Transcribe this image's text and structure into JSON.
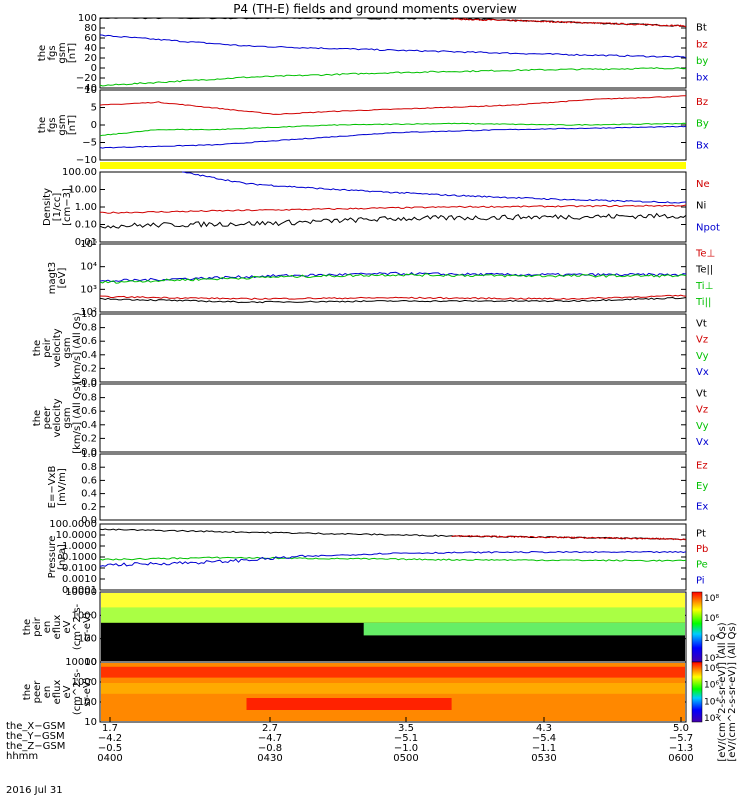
{
  "title": "P4 (TH-E) fields and ground moments overview",
  "date": "2016 Jul 31",
  "colors": {
    "black": "#000000",
    "red": "#d00000",
    "green": "#00c000",
    "blue": "#0000d0",
    "yellow": "#ffff00"
  },
  "chart_data": [
    {
      "id": "fgs-gsm-mag",
      "type": "line",
      "ylabel": [
        "the",
        "fgs",
        "gsm",
        "[nT]"
      ],
      "yticks": [
        "100",
        "80",
        "60",
        "40",
        "20",
        "0",
        "−20",
        "−40"
      ],
      "ylim": [
        -45,
        105
      ],
      "legend": [
        {
          "name": "Bt",
          "color": "#000000"
        },
        {
          "name": "bz",
          "color": "#d00000"
        },
        {
          "name": "by",
          "color": "#00c000"
        },
        {
          "name": "bx",
          "color": "#0000d0"
        }
      ],
      "series": [
        {
          "name": "bt",
          "color": "#000000",
          "points": [
            [
              0,
              105
            ],
            [
              0.6,
              104
            ],
            [
              1,
              88
            ]
          ]
        },
        {
          "name": "bz",
          "color": "#d00000",
          "points": [
            [
              0.6,
              103
            ],
            [
              0.8,
              96
            ],
            [
              1,
              88
            ]
          ]
        },
        {
          "name": "by",
          "color": "#0000d0",
          "points": [
            [
              0,
              68
            ],
            [
              0.25,
              45
            ],
            [
              0.5,
              36
            ],
            [
              0.75,
              28
            ],
            [
              1,
              21
            ]
          ]
        },
        {
          "name": "bx",
          "color": "#00c000",
          "points": [
            [
              0,
              -40
            ],
            [
              0.25,
              -22
            ],
            [
              0.5,
              -12
            ],
            [
              0.75,
              -6
            ],
            [
              1,
              -2
            ]
          ]
        }
      ]
    },
    {
      "id": "fgs-gsm",
      "type": "line",
      "ylabel": [
        "the",
        "fgs",
        "gsm",
        "[nT]"
      ],
      "yticks": [
        "10",
        "5",
        "0",
        "−5",
        "−10"
      ],
      "ylim": [
        -13,
        10
      ],
      "legend": [
        {
          "name": "Bz",
          "color": "#d00000"
        },
        {
          "name": "By",
          "color": "#00c000"
        },
        {
          "name": "Bx",
          "color": "#0000d0"
        }
      ],
      "series": [
        {
          "name": "Bz",
          "color": "#d00000",
          "points": [
            [
              0,
              5
            ],
            [
              0.1,
              6
            ],
            [
              0.2,
              4
            ],
            [
              0.3,
              2
            ],
            [
              0.4,
              3
            ],
            [
              0.55,
              4
            ],
            [
              0.7,
              5
            ],
            [
              0.85,
              7
            ],
            [
              1,
              8
            ]
          ]
        },
        {
          "name": "By",
          "color": "#00c000",
          "points": [
            [
              0,
              -5
            ],
            [
              0.1,
              -3
            ],
            [
              0.2,
              -3
            ],
            [
              0.4,
              -1.5
            ],
            [
              0.6,
              -1
            ],
            [
              0.8,
              -1.5
            ],
            [
              1,
              -1
            ]
          ]
        },
        {
          "name": "Bx",
          "color": "#0000d0",
          "points": [
            [
              0,
              -9
            ],
            [
              0.2,
              -8
            ],
            [
              0.35,
              -6
            ],
            [
              0.5,
              -4
            ],
            [
              0.7,
              -3
            ],
            [
              0.85,
              -2.5
            ],
            [
              1,
              -2
            ]
          ]
        }
      ]
    },
    {
      "id": "density",
      "type": "line",
      "ylabel": [
        "Density",
        "[1/cc]",
        "[cm−3]"
      ],
      "yticks": [
        "100.00",
        "10.00",
        "1.00",
        "0.10",
        "0.01"
      ],
      "log": true,
      "ylim": [
        -2.3,
        2.5
      ],
      "legend": [
        {
          "name": "Ne",
          "color": "#d00000"
        },
        {
          "name": "Ni",
          "color": "#000000"
        },
        {
          "name": "Npot",
          "color": "#0000d0"
        }
      ],
      "series": [
        {
          "name": "Ne",
          "color": "#d00000",
          "points": [
            [
              0,
              -0.3
            ],
            [
              0.3,
              -0.1
            ],
            [
              0.6,
              0.1
            ],
            [
              1,
              0.2
            ]
          ]
        },
        {
          "name": "Ni",
          "color": "#0000d0",
          "points": [
            [
              0.14,
              2.5
            ],
            [
              0.25,
              1.7
            ],
            [
              0.4,
              1.3
            ],
            [
              0.6,
              0.9
            ],
            [
              0.8,
              0.6
            ],
            [
              1,
              0.4
            ]
          ]
        },
        {
          "name": "Npot",
          "color": "#000000",
          "points": [
            [
              0,
              -1.2
            ],
            [
              0.3,
              -1.0
            ],
            [
              0.5,
              -0.7
            ],
            [
              0.7,
              -0.6
            ],
            [
              1,
              -0.5
            ]
          ]
        }
      ]
    },
    {
      "id": "magt3",
      "type": "line",
      "ylabel": [
        "magt3",
        "[eV]"
      ],
      "yticks": [
        "10⁵",
        "10⁴",
        "10³",
        "10²"
      ],
      "log": true,
      "ylim": [
        1.9,
        5
      ],
      "legend": [
        {
          "name": "Te⊥",
          "color": "#d00000"
        },
        {
          "name": "Te||",
          "color": "#000000"
        },
        {
          "name": "Ti⊥",
          "color": "#00c000"
        },
        {
          "name": "Ti||",
          "color": "#00c000"
        }
      ],
      "series": [
        {
          "name": "Ti",
          "color": "#0000d0",
          "points": [
            [
              0,
              3.3
            ],
            [
              0.3,
              3.55
            ],
            [
              0.5,
              3.65
            ],
            [
              0.7,
              3.6
            ],
            [
              1,
              3.6
            ]
          ]
        },
        {
          "name": "Tip",
          "color": "#00c000",
          "points": [
            [
              0,
              3.25
            ],
            [
              0.3,
              3.5
            ],
            [
              0.5,
              3.6
            ],
            [
              0.7,
              3.55
            ],
            [
              1,
              3.55
            ]
          ]
        },
        {
          "name": "Te",
          "color": "#d00000",
          "points": [
            [
              0,
              2.6
            ],
            [
              0.25,
              2.5
            ],
            [
              0.5,
              2.55
            ],
            [
              0.8,
              2.5
            ],
            [
              1,
              2.65
            ]
          ]
        },
        {
          "name": "Tep",
          "color": "#000000",
          "points": [
            [
              0,
              2.5
            ],
            [
              0.25,
              2.35
            ],
            [
              0.5,
              2.4
            ],
            [
              0.8,
              2.4
            ],
            [
              1,
              2.55
            ]
          ]
        }
      ]
    },
    {
      "id": "peir-velocity",
      "type": "line",
      "ylabel": [
        "the",
        "peir",
        "velocity",
        "gsm",
        "[km/s] (All Qs)"
      ],
      "yticks": [
        "1.0",
        "0.8",
        "0.6",
        "0.4",
        "0.2",
        "0.0"
      ],
      "ylim": [
        0,
        1
      ],
      "legend": [
        {
          "name": "Vt",
          "color": "#000000"
        },
        {
          "name": "Vz",
          "color": "#d00000"
        },
        {
          "name": "Vy",
          "color": "#00c000"
        },
        {
          "name": "Vx",
          "color": "#0000d0"
        }
      ],
      "series": []
    },
    {
      "id": "peer-velocity",
      "type": "line",
      "ylabel": [
        "the",
        "peer",
        "velocity",
        "gsm",
        "[km/s] (All Qs)"
      ],
      "yticks": [
        "1.0",
        "0.8",
        "0.6",
        "0.4",
        "0.2",
        "0.0"
      ],
      "ylim": [
        0,
        1
      ],
      "legend": [
        {
          "name": "Vt",
          "color": "#000000"
        },
        {
          "name": "Vz",
          "color": "#d00000"
        },
        {
          "name": "Vy",
          "color": "#00c000"
        },
        {
          "name": "Vx",
          "color": "#0000d0"
        }
      ],
      "series": []
    },
    {
      "id": "e-field",
      "type": "line",
      "ylabel": [
        "E=−VxB",
        "[mV/m]"
      ],
      "yticks": [
        "1.0",
        "0.8",
        "0.6",
        "0.4",
        "0.2",
        "0.0"
      ],
      "ylim": [
        0,
        1
      ],
      "legend": [
        {
          "name": "Ez",
          "color": "#d00000"
        },
        {
          "name": "Ey",
          "color": "#00c000"
        },
        {
          "name": "Ex",
          "color": "#0000d0"
        }
      ],
      "series": []
    },
    {
      "id": "pressure",
      "type": "line",
      "ylabel": [
        "Pressure",
        "[nPa]"
      ],
      "yticks": [
        "100.0000",
        "10.0000",
        "1.0000",
        "0.1000",
        "0.0100",
        "0.0010",
        "0.0001"
      ],
      "log": true,
      "ylim": [
        -4,
        2.1
      ],
      "legend": [
        {
          "name": "Pt",
          "color": "#000000"
        },
        {
          "name": "Pb",
          "color": "#d00000"
        },
        {
          "name": "Pe",
          "color": "#00c000"
        },
        {
          "name": "Pi",
          "color": "#0000d0"
        }
      ],
      "series": [
        {
          "name": "Pt",
          "color": "#000000",
          "points": [
            [
              0,
              1.6
            ],
            [
              0.3,
              1.3
            ],
            [
              0.6,
              1.0
            ],
            [
              0.8,
              0.85
            ],
            [
              1,
              0.7
            ]
          ]
        },
        {
          "name": "Pb",
          "color": "#d00000",
          "points": [
            [
              0.6,
              1.0
            ],
            [
              0.8,
              0.85
            ],
            [
              1,
              0.7
            ]
          ]
        },
        {
          "name": "Pe",
          "color": "#00c000",
          "points": [
            [
              0,
              -1.2
            ],
            [
              0.2,
              -1.0
            ],
            [
              0.4,
              -1.1
            ],
            [
              0.6,
              -1.2
            ],
            [
              0.8,
              -1.25
            ],
            [
              1,
              -1.3
            ]
          ]
        },
        {
          "name": "Pi",
          "color": "#0000d0",
          "points": [
            [
              0,
              -1.7
            ],
            [
              0.2,
              -1.4
            ],
            [
              0.35,
              -0.9
            ],
            [
              0.5,
              -0.6
            ],
            [
              0.7,
              -0.5
            ],
            [
              1,
              -0.5
            ]
          ]
        }
      ]
    },
    {
      "id": "peir-en-eflux",
      "type": "heatmap",
      "ylabel": [
        "the",
        "peir",
        "en",
        "eflux",
        "eV",
        "(cm^2-s-",
        "sr-eV)"
      ],
      "yticks": [
        "10000",
        "1000",
        "100",
        "10"
      ],
      "colorbar": {
        "label": "[eV/(cm^2-s-sr-eV)] (All Qs)",
        "ticks": [
          "10⁸",
          "10⁶",
          "10⁴",
          "10²"
        ]
      }
    },
    {
      "id": "peer-en-eflux",
      "type": "heatmap",
      "ylabel": [
        "the",
        "peer",
        "en",
        "eflux",
        "eV",
        "(cm^2-s-",
        "sr-eV)"
      ],
      "yticks": [
        "10000",
        "1000",
        "100",
        "10"
      ],
      "colorbar": {
        "label": "[eV/(cm^2-s-sr-eV)] (All Qs)",
        "ticks": [
          "10⁸",
          "10⁶",
          "10⁴",
          "10²"
        ]
      }
    }
  ],
  "x_axis": {
    "rows": [
      {
        "label": "the_X−GSM",
        "values": [
          "1.7",
          "2.7",
          "3.5",
          "4.3",
          "5.0"
        ]
      },
      {
        "label": "the_Y−GSM",
        "values": [
          "−4.2",
          "−4.7",
          "−5.1",
          "−5.4",
          "−5.7"
        ]
      },
      {
        "label": "the_Z−GSM",
        "values": [
          "−0.5",
          "−0.8",
          "−1.0",
          "−1.1",
          "−1.3"
        ]
      },
      {
        "label": "hhmm",
        "values": [
          "0400",
          "0430",
          "0500",
          "0530",
          "0600"
        ]
      }
    ]
  },
  "yellow_bar": true
}
